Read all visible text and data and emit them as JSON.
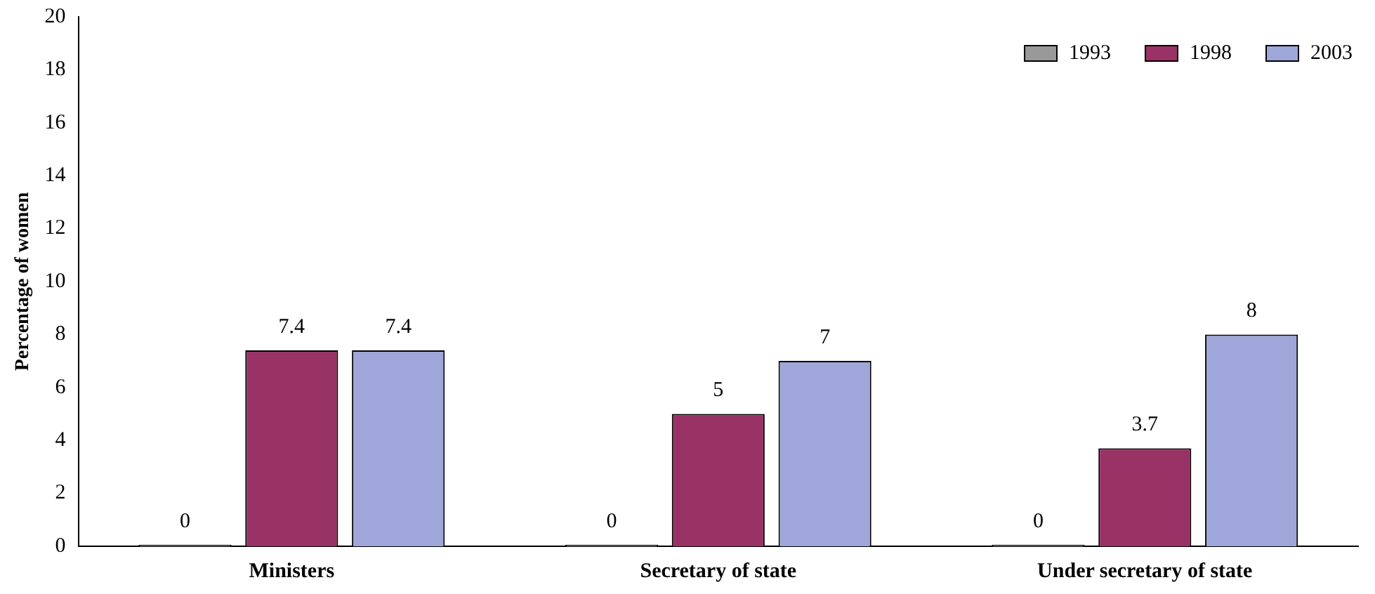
{
  "chart_data": {
    "type": "bar",
    "ylabel": "Percentage of women",
    "categories": [
      "Ministers",
      "Secretary of state",
      "Under secretary of state"
    ],
    "series": [
      {
        "name": "1993",
        "color": "#999999",
        "values": [
          0,
          0,
          0
        ]
      },
      {
        "name": "1998",
        "color": "#993366",
        "values": [
          7.4,
          5,
          3.7
        ]
      },
      {
        "name": "2003",
        "color": "#9fa6d9",
        "values": [
          7.4,
          7,
          8
        ]
      }
    ],
    "ylim": [
      0,
      20
    ],
    "yticks": [
      0,
      2,
      4,
      6,
      8,
      10,
      12,
      14,
      16,
      18,
      20
    ],
    "grid": false,
    "legend": "top right",
    "data_labels": true
  }
}
